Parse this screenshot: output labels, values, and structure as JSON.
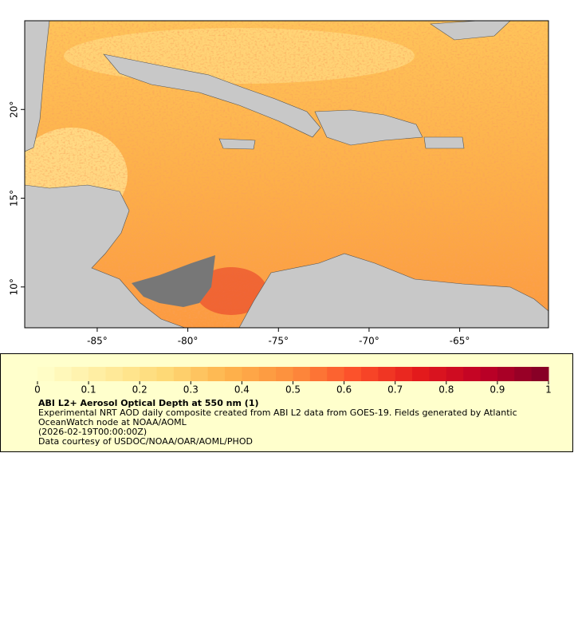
{
  "chart_data": {
    "type": "map",
    "xlim": [
      -89,
      -60.1
    ],
    "ylim": [
      7.7,
      25
    ],
    "xticks": [
      {
        "value": -85,
        "label": "-85°"
      },
      {
        "value": -80,
        "label": "-80°"
      },
      {
        "value": -75,
        "label": "-75°"
      },
      {
        "value": -70,
        "label": "-70°"
      },
      {
        "value": -65,
        "label": "-65°"
      }
    ],
    "yticks": [
      {
        "value": 10,
        "label": "10°"
      },
      {
        "value": 15,
        "label": "15°"
      },
      {
        "value": 20,
        "label": "20°"
      }
    ],
    "colorbar": {
      "lim": [
        0,
        1
      ],
      "ticks": [
        0,
        0.1,
        0.2,
        0.3,
        0.4,
        0.5,
        0.6,
        0.7,
        0.8,
        0.9,
        1
      ],
      "colors": [
        "#ffffcc",
        "#ffeda0",
        "#fed976",
        "#feb24c",
        "#fd8d3c",
        "#fc4e2a",
        "#e31a1c",
        "#bd0026",
        "#800026"
      ]
    },
    "title": "ABI L2+ Aerosol Optical Depth at 550 nm (1)",
    "description": "Experimental NRT AOD daily composite created from ABI L2 data from GOES-19. Fields generated by Atlantic OceanWatch node at NOAA/AOML",
    "time": "(2026-02-19T00:00:00Z)",
    "credit": "Data courtesy of USDOC/NOAA/OAR/AOML/PHOD"
  }
}
